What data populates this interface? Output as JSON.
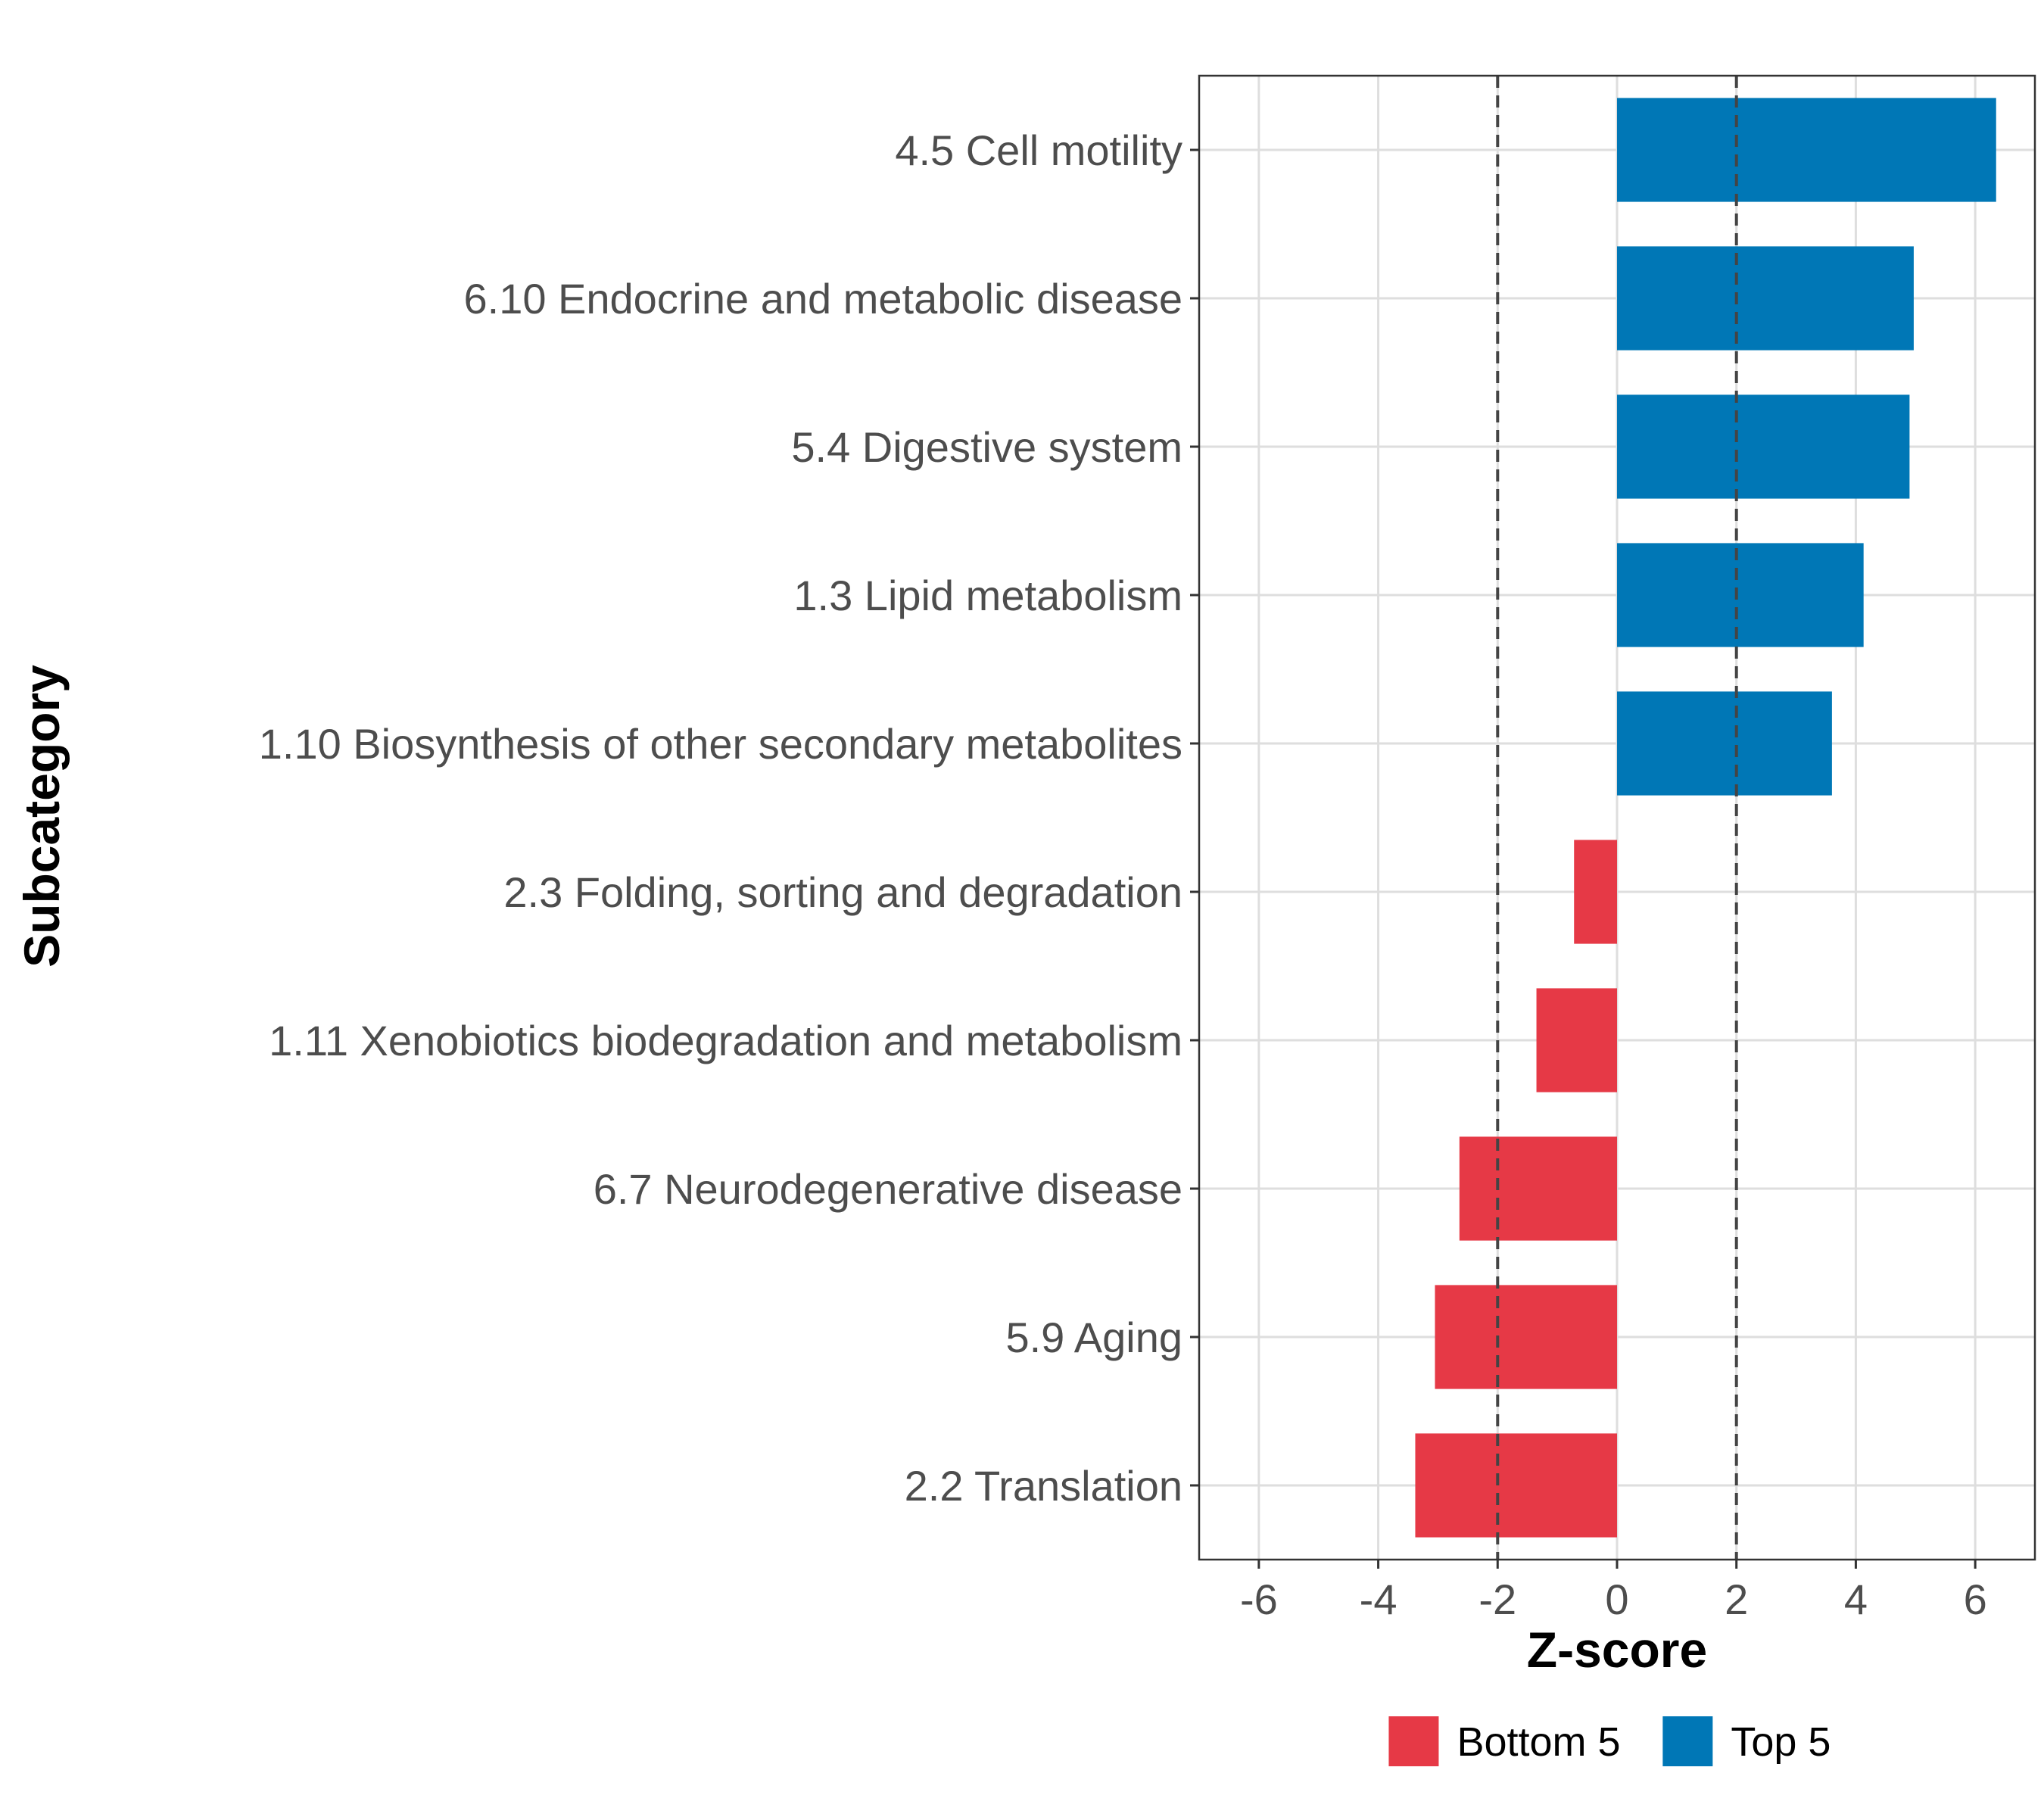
{
  "chart_data": {
    "type": "bar",
    "orientation": "horizontal",
    "xlabel": "Z-score",
    "ylabel": "Subcategory",
    "xlim": [
      -7,
      7
    ],
    "xticks": [
      -6,
      -4,
      -2,
      0,
      2,
      4,
      6
    ],
    "threshold_lines": [
      -2,
      2
    ],
    "grid": true,
    "categories": [
      "4.5 Cell motility",
      "6.10 Endocrine and metabolic disease",
      "5.4 Digestive system",
      "1.3 Lipid metabolism",
      "1.10 Biosynthesis of other secondary metabolites",
      "2.3 Folding, sorting and degradation",
      "1.11 Xenobiotics biodegradation and metabolism",
      "6.7 Neurodegenerative disease",
      "5.9 Aging",
      "2.2 Translation"
    ],
    "values": [
      6.35,
      4.97,
      4.9,
      4.13,
      3.6,
      -0.72,
      -1.35,
      -2.64,
      -3.05,
      -3.38
    ],
    "groups": [
      "Top 5",
      "Top 5",
      "Top 5",
      "Top 5",
      "Top 5",
      "Bottom 5",
      "Bottom 5",
      "Bottom 5",
      "Bottom 5",
      "Bottom 5"
    ],
    "legend": {
      "position": "bottom",
      "items": [
        {
          "label": "Bottom 5",
          "color": "#e63946"
        },
        {
          "label": "Top 5",
          "color": "#0077b6"
        }
      ]
    }
  }
}
